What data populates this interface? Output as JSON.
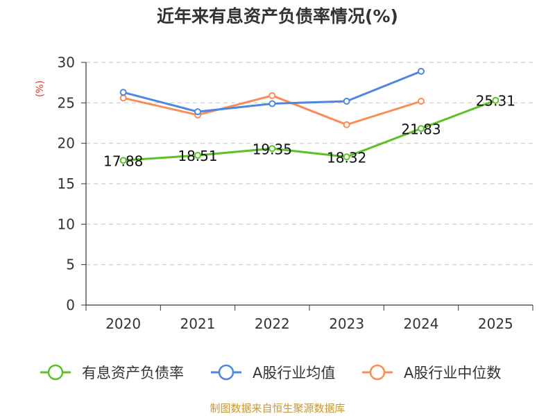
{
  "chart_data": {
    "type": "line",
    "title": "近年来有息资产负债率情况(%)",
    "ylabel": "(%)",
    "ylabel_color": "#e8342c",
    "categories": [
      "2020",
      "2021",
      "2022",
      "2023",
      "2024",
      "2025"
    ],
    "ylim": [
      0,
      30
    ],
    "yticks": [
      0,
      5,
      10,
      15,
      20,
      25,
      30
    ],
    "grid": true,
    "legend_position": "bottom",
    "series": [
      {
        "name": "有息资产负债率",
        "color": "#5cc125",
        "values": [
          17.88,
          18.51,
          19.35,
          18.32,
          21.83,
          25.31
        ],
        "data_labels": [
          "17.88",
          "18.51",
          "19.35",
          "18.32",
          "21.83",
          "25.31"
        ]
      },
      {
        "name": "A股行业均值",
        "color": "#4e86e0",
        "values": [
          26.3,
          23.9,
          24.9,
          25.2,
          28.9,
          null
        ]
      },
      {
        "name": "A股行业中位数",
        "color": "#f98c57",
        "values": [
          25.6,
          23.5,
          25.9,
          22.3,
          25.2,
          null
        ]
      }
    ],
    "source": "制图数据来自恒生聚源数据库",
    "source_color": "#c8962d"
  }
}
